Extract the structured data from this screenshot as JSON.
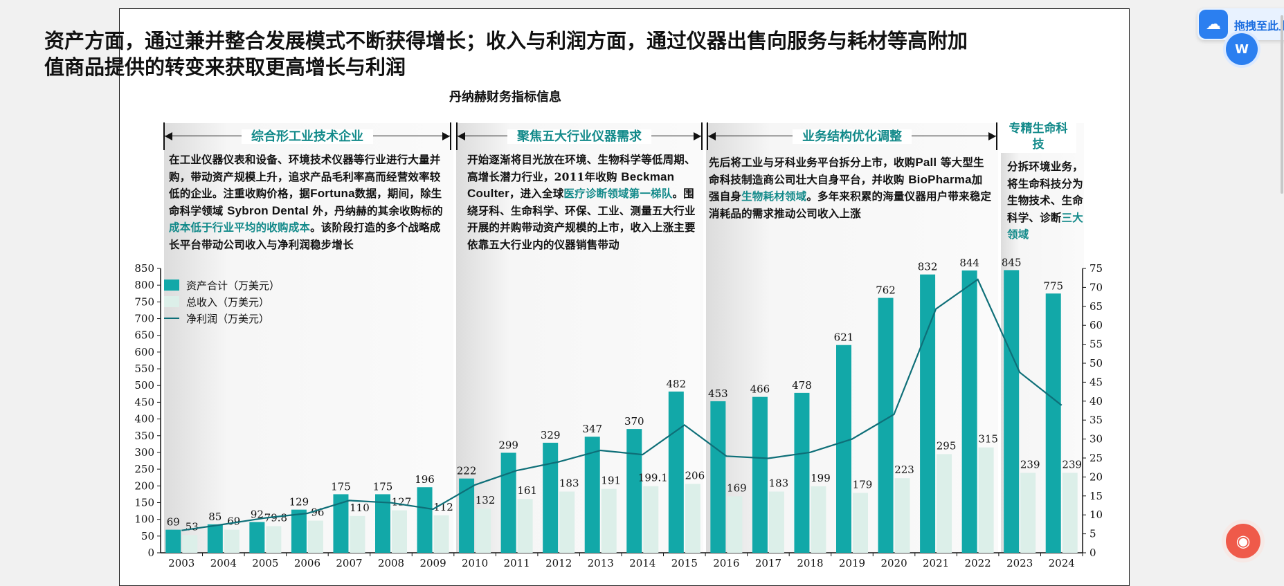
{
  "headline": "资产方面，通过兼并整合发展模式不断获得增长；收入与利润方面，通过仪器出售向服务与耗材等高附加值商品提供的转变来获取更高增长与利润",
  "phases": [
    {
      "label": "综合形工业技术企业",
      "text": [
        {
          "t": "在工业仪器仪表和设备、环境技术仪器等行业进行大量并购，带动资产规模上升，追求产品毛利率高而经营效率较低的企业。注重收购价格，据"
        },
        {
          "t": "Fortuna",
          "s": 1
        },
        {
          "t": "数据，期间，除生命科学领域 "
        },
        {
          "t": "Sybron Dental",
          "s": 1
        },
        {
          "t": " 外，丹纳赫的其余收购标的"
        },
        {
          "t": "成本低于行业平均的收购成本",
          "h": 1
        },
        {
          "t": "。该阶段打造的多个战略成长平台带动公司收入与净利润稳步增长"
        }
      ]
    },
    {
      "label": "聚焦五大行业仪器需求",
      "text": [
        {
          "t": "开始逐渐将目光放在环境、生物科学等低周期、高增长潜力行业，2011年收购 "
        },
        {
          "t": "Beckman Coulter",
          "s": 1
        },
        {
          "t": "，进入全球"
        },
        {
          "t": "医疗诊断领域第一梯队",
          "h": 1
        },
        {
          "t": "。围绕牙科、生命科学、环保、工业、测量五大行业开展的并购带动资产规模的上市，收入上涨主要依靠五大行业内的仪器销售带动"
        }
      ]
    },
    {
      "label": "业务结构优化调整",
      "text": [
        {
          "t": "先后将工业与牙科业务平台拆分上市，收购"
        },
        {
          "t": "Pall",
          "s": 1
        },
        {
          "t": " 等大型生命科技制造商公司壮大自身平台，并收购 "
        },
        {
          "t": "BioPharma",
          "s": 1
        },
        {
          "t": "加强自身"
        },
        {
          "t": "生物耗材领域",
          "h": 1
        },
        {
          "t": "。多年来积累的海量仪器用户带来稳定消耗品的需求推动公司收入上涨"
        }
      ]
    },
    {
      "label": "专精生命科技",
      "text": [
        {
          "t": "分拆环境业务，将生命科技分为生物技术、生命科学、诊断"
        },
        {
          "t": "三大领域",
          "h": 1
        }
      ]
    }
  ],
  "colors": {
    "asset": "#12a8a8",
    "revenue": "#dcefe9",
    "profit_line": "#0e6f78",
    "highlight": "#138a8a"
  },
  "chart_data": {
    "type": "bar",
    "title": "丹纳赫财务指标信息",
    "categories": [
      "2003",
      "2004",
      "2005",
      "2006",
      "2007",
      "2008",
      "2009",
      "2010",
      "2011",
      "2012",
      "2013",
      "2014",
      "2015",
      "2016",
      "2017",
      "2018",
      "2019",
      "2020",
      "2021",
      "2022",
      "2023",
      "2024"
    ],
    "series": [
      {
        "name": "资产合计（万美元）",
        "type": "bar",
        "axis": "left",
        "values": [
          69,
          85,
          92,
          129,
          175,
          175,
          196,
          222,
          299,
          329,
          347,
          370,
          482,
          453,
          466,
          478,
          621,
          762,
          832,
          844,
          845,
          775
        ],
        "labels": [
          "69",
          "85",
          "92",
          "129",
          "175",
          "175",
          "196",
          "222",
          "299",
          "329",
          "347",
          "370",
          "482",
          "453",
          "466",
          "478",
          "621",
          "762",
          "832",
          "844",
          "845",
          "775"
        ]
      },
      {
        "name": "总收入（万美元）",
        "type": "bar",
        "axis": "left",
        "values": [
          53,
          69,
          79.8,
          96,
          110,
          127,
          112,
          132,
          161,
          183,
          191,
          199.1,
          206,
          169,
          183,
          199,
          179,
          223,
          295,
          315,
          239,
          239
        ],
        "labels": [
          "53",
          "69",
          "79.8",
          "96",
          "110",
          "127",
          "112",
          "132",
          "161",
          "183",
          "191",
          "199.1",
          "206",
          "169",
          "183",
          "199",
          "179",
          "223",
          "295",
          "315",
          "239",
          "239"
        ]
      },
      {
        "name": "净利润（万美元）",
        "type": "line",
        "axis": "right",
        "values": [
          5.9,
          7.5,
          9.2,
          10.4,
          13.8,
          13.2,
          11.5,
          17.9,
          21.7,
          24,
          27,
          25.9,
          33.7,
          25.5,
          24.9,
          26.5,
          30,
          36.5,
          64.3,
          72.1,
          47.6,
          38.9
        ]
      }
    ],
    "y_left": {
      "min": 0,
      "max": 850,
      "step": 50
    },
    "y_right": {
      "min": 0,
      "max": 75,
      "step": 5
    },
    "legend": "top-left"
  },
  "overlay": {
    "baidu_label": "拖拽至此上",
    "word_icon": "word-icon",
    "robot_icon": "robot-icon"
  }
}
